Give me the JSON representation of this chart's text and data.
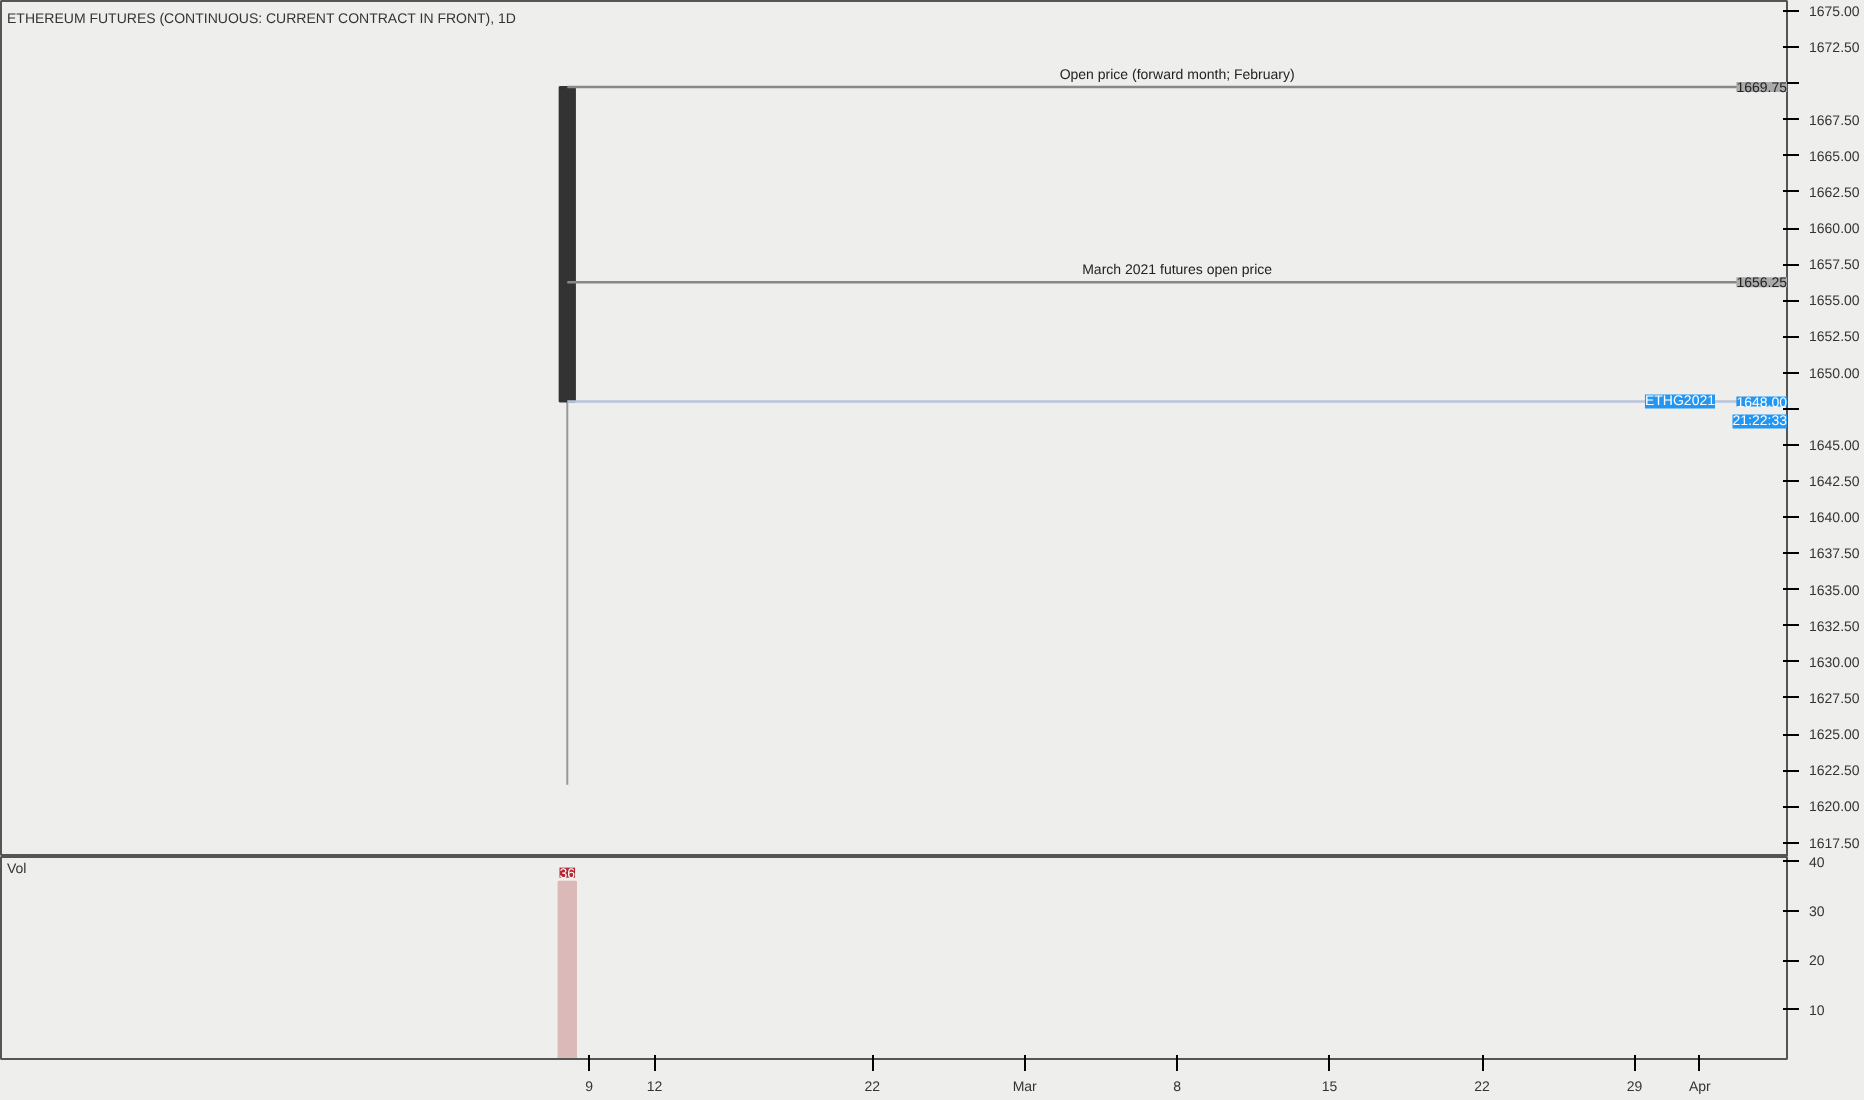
{
  "chart_data": [
    {
      "type": "candlestick",
      "title": "ETHEREUM FUTURES (CONTINUOUS: CURRENT CONTRACT IN FRONT), 1D",
      "x": [
        "2021-02-08"
      ],
      "ohlc": [
        [
          1669.75,
          1669.75,
          1621.5,
          1648
        ]
      ],
      "color": "#333333",
      "xlim": [
        "2021-01-13",
        "2021-04-05"
      ],
      "ylim": [
        1616.5,
        1675.7
      ],
      "yticks": [
        {
          "value": 1617.5,
          "label": "1617.50"
        },
        {
          "value": 1620,
          "label": "1620.00"
        },
        {
          "value": 1622.5,
          "label": "1622.50"
        },
        {
          "value": 1625,
          "label": "1625.00"
        },
        {
          "value": 1627.5,
          "label": "1627.50"
        },
        {
          "value": 1630,
          "label": "1630.00"
        },
        {
          "value": 1632.5,
          "label": "1632.50"
        },
        {
          "value": 1635,
          "label": "1635.00"
        },
        {
          "value": 1637.5,
          "label": "1637.50"
        },
        {
          "value": 1640,
          "label": "1640.00"
        },
        {
          "value": 1642.5,
          "label": "1642.50"
        },
        {
          "value": 1645,
          "label": "1645.00"
        },
        {
          "value": 1647.5,
          "label": null
        },
        {
          "value": 1650,
          "label": "1650.00"
        },
        {
          "value": 1652.5,
          "label": "1652.50"
        },
        {
          "value": 1655,
          "label": "1655.00"
        },
        {
          "value": 1657.5,
          "label": "1657.50"
        },
        {
          "value": 1660,
          "label": "1660.00"
        },
        {
          "value": 1662.5,
          "label": "1662.50"
        },
        {
          "value": 1665,
          "label": "1665.00"
        },
        {
          "value": 1667.5,
          "label": "1667.50"
        },
        {
          "value": 1670,
          "label": null
        },
        {
          "value": 1672.5,
          "label": "1672.50"
        },
        {
          "value": 1675,
          "label": "1675.00"
        }
      ],
      "ref_lines": [
        {
          "axis": "y",
          "value": 1669.75,
          "label": "Open price (forward month; February)",
          "color": "#888888"
        },
        {
          "axis": "y",
          "value": 1656.25,
          "label": "March 2021 futures open price",
          "color": "#888888"
        },
        {
          "axis": "y",
          "value": 1648,
          "color": "#b8c4dc"
        }
      ],
      "annotations": [
        {
          "text": "1669.75",
          "y": 1669.75
        },
        {
          "text": "1656.25",
          "y": 1656.25
        },
        {
          "text": "1648.00",
          "y": 1648
        },
        {
          "text": "ETHG2021",
          "y": 1648
        },
        "21:22:33"
      ],
      "tick_labels": "y",
      "grid": false
    },
    {
      "type": "bar",
      "title": "Vol",
      "x": [
        "2021-02-08"
      ],
      "values": [
        36
      ],
      "color": "#dbb9b9",
      "value_labels": [
        "36"
      ],
      "xlim": [
        "2021-01-13",
        "2021-04-05"
      ],
      "ylim": [
        0,
        41
      ],
      "yticks": [
        10,
        20,
        30,
        40
      ],
      "xticks": [
        {
          "value": "2021-02-09",
          "label": "9"
        },
        {
          "value": "2021-02-12",
          "label": "12"
        },
        {
          "value": "2021-02-22",
          "label": "22"
        },
        {
          "value": "2021-03-01",
          "label": "Mar"
        },
        {
          "value": "2021-03-08",
          "label": "8"
        },
        {
          "value": "2021-03-15",
          "label": "15"
        },
        {
          "value": "2021-03-22",
          "label": "22"
        },
        {
          "value": "2021-03-29",
          "label": "29"
        },
        {
          "value": "2021-04-01",
          "label": "Apr"
        }
      ],
      "grid": false
    }
  ]
}
